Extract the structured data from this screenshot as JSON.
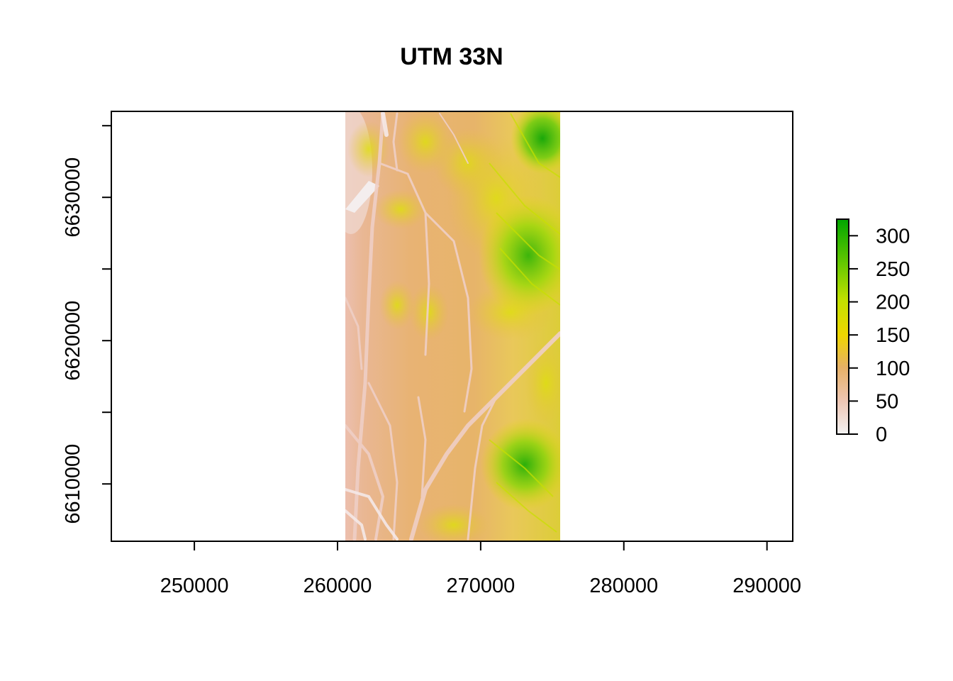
{
  "title": "UTM 33N",
  "map_data": {
    "type": "raster",
    "crs_label": "UTM 33N",
    "x_ticks": [
      "250000",
      "260000",
      "270000",
      "280000",
      "290000"
    ],
    "y_ticks": [
      "6610000",
      "6620000",
      "6630000"
    ],
    "x_range": [
      244200,
      291800
    ],
    "y_range": [
      6606000,
      6636000
    ],
    "raster_extent": {
      "xmin": 260500,
      "xmax": 275500,
      "ymin": 6606000,
      "ymax": 6636000
    },
    "legend": {
      "ticks": [
        "0",
        "50",
        "100",
        "150",
        "200",
        "250",
        "300"
      ],
      "range": [
        0,
        325
      ],
      "colors": [
        "#f2f2f2",
        "#eec7b5",
        "#e6b066",
        "#eed600",
        "#c3e100",
        "#62c700",
        "#00a600"
      ]
    }
  }
}
